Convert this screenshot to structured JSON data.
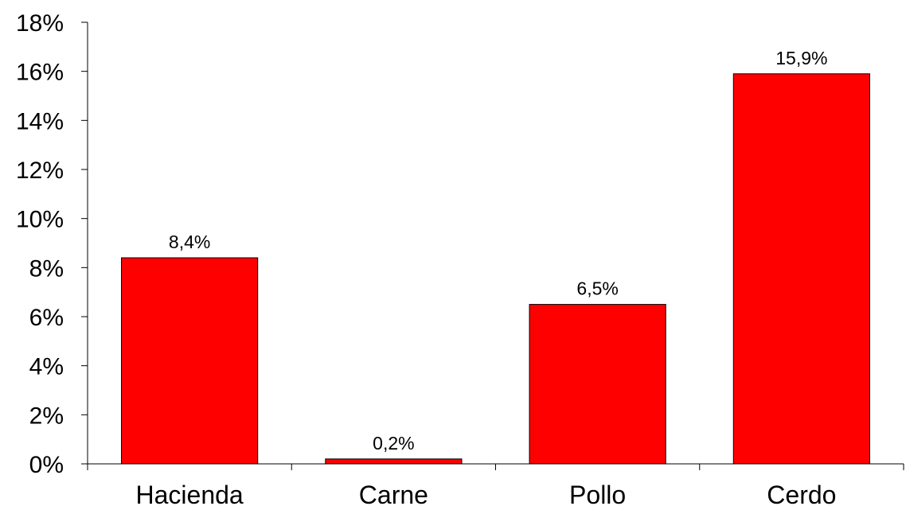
{
  "chart_data": {
    "type": "bar",
    "title": "",
    "xlabel": "",
    "ylabel": "",
    "categories": [
      "Hacienda",
      "Carne",
      "Pollo",
      "Cerdo"
    ],
    "values": [
      8.4,
      0.2,
      6.5,
      15.9
    ],
    "data_labels": [
      "8,4%",
      "0,2%",
      "6,5%",
      "15,9%"
    ],
    "ylim": [
      0,
      18
    ],
    "yticks": [
      0,
      2,
      4,
      6,
      8,
      10,
      12,
      14,
      16,
      18
    ],
    "ytick_labels": [
      "0%",
      "2%",
      "4%",
      "6%",
      "8%",
      "10%",
      "12%",
      "14%",
      "16%",
      "18%"
    ],
    "grid": false,
    "legend": "none",
    "bar_color": "#ff0000",
    "bar_edge_color": "#000000"
  }
}
